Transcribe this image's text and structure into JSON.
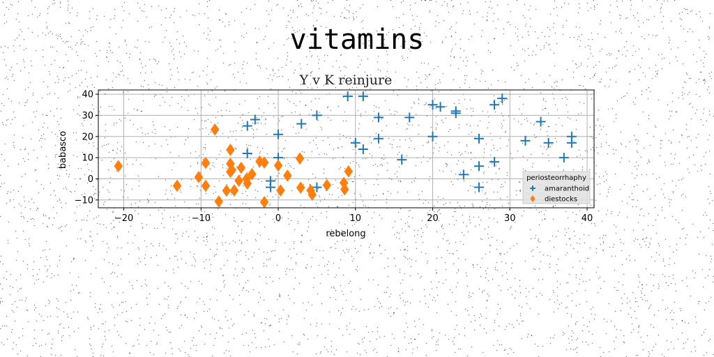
{
  "figure": {
    "suptitle": "vitamins"
  },
  "chart_data": {
    "type": "scatter",
    "title": "Y v K reinjure",
    "xlabel": "rebelong",
    "ylabel": "babasco",
    "xlim": [
      -23.3,
      40.9
    ],
    "ylim": [
      -13.7,
      42.0
    ],
    "xticks": [
      -20,
      -10,
      0,
      10,
      20,
      30,
      40
    ],
    "yticks": [
      -10,
      0,
      10,
      20,
      30,
      40
    ],
    "grid": true,
    "legend": {
      "title": "periosteorrhaphy",
      "placement": "lower-right"
    },
    "series": [
      {
        "name": "amaranthoid",
        "marker": "plus",
        "color": "#1f77b4",
        "points": [
          [
            -4,
            25
          ],
          [
            -3,
            28
          ],
          [
            -4,
            12
          ],
          [
            0,
            21
          ],
          [
            0,
            10
          ],
          [
            -1,
            -1
          ],
          [
            -1,
            -4
          ],
          [
            3,
            26
          ],
          [
            5,
            30
          ],
          [
            5,
            -4
          ],
          [
            9,
            39
          ],
          [
            10,
            17
          ],
          [
            11,
            39
          ],
          [
            11,
            14
          ],
          [
            13,
            29
          ],
          [
            13,
            19
          ],
          [
            16,
            9
          ],
          [
            17,
            29
          ],
          [
            20,
            35
          ],
          [
            20,
            20
          ],
          [
            21,
            34
          ],
          [
            23,
            32
          ],
          [
            23,
            31
          ],
          [
            24,
            2
          ],
          [
            26,
            19
          ],
          [
            26,
            6
          ],
          [
            26,
            -4
          ],
          [
            28,
            35
          ],
          [
            28,
            8
          ],
          [
            29,
            38
          ],
          [
            32,
            18
          ],
          [
            34,
            27
          ],
          [
            35,
            17
          ],
          [
            37,
            10
          ],
          [
            38,
            20
          ],
          [
            38,
            17
          ]
        ]
      },
      {
        "name": "diestocks",
        "marker": "diamond",
        "color": "#ff7f0e",
        "points": [
          [
            -20.7,
            6
          ],
          [
            -13.1,
            -3.3
          ],
          [
            -10.3,
            0.8
          ],
          [
            -9.4,
            -3.3
          ],
          [
            -9.4,
            7.5
          ],
          [
            -8.2,
            23.3
          ],
          [
            -7.7,
            -10.7
          ],
          [
            -6.7,
            -5.6
          ],
          [
            -6.2,
            13.7
          ],
          [
            -6.2,
            7.1
          ],
          [
            -6.2,
            3.3
          ],
          [
            -6,
            4.1
          ],
          [
            -5.7,
            -5.5
          ],
          [
            -5.1,
            -0.9
          ],
          [
            -4.8,
            5.2
          ],
          [
            -4.1,
            0
          ],
          [
            -4,
            -2.2
          ],
          [
            -3.4,
            2.2
          ],
          [
            -2.4,
            8.2
          ],
          [
            -1.8,
            7.7
          ],
          [
            -1.8,
            -11
          ],
          [
            1.2,
            1.5
          ],
          [
            0,
            6.3
          ],
          [
            0.3,
            -5.5
          ],
          [
            2.8,
            9.6
          ],
          [
            2.9,
            -4.2
          ],
          [
            4.2,
            -5.5
          ],
          [
            4.4,
            -7.5
          ],
          [
            6.3,
            -3
          ],
          [
            8.5,
            -1.9
          ],
          [
            8.6,
            -5
          ],
          [
            9.1,
            3.5
          ]
        ]
      }
    ]
  }
}
